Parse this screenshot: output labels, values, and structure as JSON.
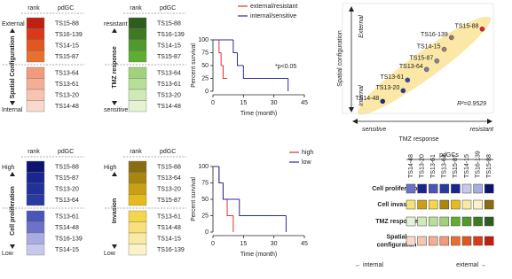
{
  "rank_panels": [
    {
      "rank_header": "rank",
      "id_header": "pdGC",
      "top_label": "External",
      "axis_label": "Spatial Configuration",
      "bottom_label": "Internal",
      "items": [
        "TS15-88",
        "TS16-139",
        "TS14-15",
        "TS15-87",
        "TS13-64",
        "TS13-61",
        "TS13-20",
        "TS14-48"
      ],
      "colors": [
        "#c0200f",
        "#d83a1a",
        "#e2561f",
        "#e8702e",
        "#f19a7c",
        "#f4ae95",
        "#f7c4b0",
        "#f9d9cc"
      ]
    },
    {
      "rank_header": "rank",
      "id_header": "pdGC",
      "top_label": "resistant",
      "axis_label": "TMZ response",
      "bottom_label": "sensitive",
      "items": [
        "TS15-88",
        "TS16-139",
        "TS14-15",
        "TS15-87",
        "TS13-64",
        "TS13-61",
        "TS13-20",
        "TS14-48"
      ],
      "colors": [
        "#2e5e1e",
        "#3d7a22",
        "#4e9a2a",
        "#5fae32",
        "#9fd27a",
        "#b7df98",
        "#cfeab6",
        "#e4f3d6"
      ]
    },
    {
      "rank_header": "rank",
      "id_header": "pdGC",
      "top_label": "High",
      "axis_label": "Cell proliferation",
      "bottom_label": "Low",
      "items": [
        "TS15-88",
        "TS15-87",
        "TS13-20",
        "TS13-64",
        "TS13-61",
        "TS14-48",
        "TS16-139",
        "TS14-15"
      ],
      "colors": [
        "#0d1470",
        "#1a2590",
        "#22309a",
        "#2a3aa0",
        "#4b55b8",
        "#6b72c8",
        "#a8ace0",
        "#c8c8ee"
      ]
    },
    {
      "rank_header": "rank",
      "id_header": "pdGC",
      "top_label": "High",
      "axis_label": "Invasion",
      "bottom_label": "Low",
      "items": [
        "TS15-88",
        "TS13-64",
        "TS13-20",
        "TS15-87",
        "TS13-61",
        "TS14-48",
        "TS14-15",
        "TS16-139"
      ],
      "colors": [
        "#8a6d10",
        "#a8860f",
        "#c9a013",
        "#e5bb1c",
        "#f5d54a",
        "#f8e07a",
        "#fae9a0",
        "#fcf2c8"
      ]
    }
  ],
  "chart_data": [
    {
      "type": "step",
      "x_label": "Time (month)",
      "y_label": "Percent survival",
      "annotation": "*p<0.05",
      "xlim": [
        0,
        45
      ],
      "xticks": [
        0,
        15,
        30,
        45
      ],
      "ylim": [
        0,
        100
      ],
      "yticks": [
        0,
        25,
        50,
        75,
        100
      ],
      "series": [
        {
          "name": "external/resistant",
          "color": "#e0302a",
          "x": [
            0,
            3,
            4,
            5,
            7
          ],
          "values": [
            100,
            75,
            50,
            25,
            25
          ]
        },
        {
          "name": "internal/sensitive",
          "color": "#2a2aa0",
          "x": [
            0,
            10,
            12,
            15,
            37
          ],
          "values": [
            100,
            75,
            50,
            25,
            0
          ]
        }
      ]
    },
    {
      "type": "step",
      "x_label": "Time (month)",
      "y_label": "Percent survival",
      "xlim": [
        0,
        45
      ],
      "xticks": [
        0,
        15,
        30,
        45
      ],
      "ylim": [
        0,
        100
      ],
      "yticks": [
        0,
        25,
        50,
        75,
        100
      ],
      "series": [
        {
          "name": "high",
          "color": "#e0302a",
          "x": [
            0,
            3,
            5,
            7,
            10
          ],
          "values": [
            100,
            75,
            50,
            25,
            0
          ]
        },
        {
          "name": "low",
          "color": "#2a2aa0",
          "x": [
            0,
            3,
            5,
            13,
            36
          ],
          "values": [
            100,
            75,
            50,
            25,
            0
          ]
        }
      ]
    },
    {
      "type": "scatter",
      "y_label": "Spatial configuration",
      "y_top": "External",
      "y_bottom": "Internal",
      "x_label": "TMZ response",
      "x_left": "sensitive",
      "x_right": "resistant",
      "annotation": "R²=0.9529",
      "xlim": [
        0,
        10
      ],
      "ylim": [
        0,
        10
      ],
      "labels": [
        "TS15-88",
        "TS16-139",
        "TS14-15",
        "TS15-87",
        "TS13-64",
        "TS13-61",
        "TS13-20",
        "TS14-48"
      ],
      "x": [
        9.3,
        7.2,
        6.7,
        6.2,
        5.5,
        4.2,
        3.9,
        2.5
      ],
      "values": [
        8.1,
        7.3,
        6.2,
        5.1,
        4.3,
        3.3,
        2.3,
        1.3
      ],
      "point_colors": [
        "#e02020",
        "#a07070",
        "#9a8080",
        "#8a8090",
        "#7a7a98",
        "#3a4aa8",
        "#2a3aa0",
        "#1a2a90"
      ]
    }
  ],
  "heatmap": {
    "title": "pdGCs",
    "columns": [
      "TS14-48",
      "TS13-20",
      "TS13-61",
      "TS13-64",
      "TS15-87",
      "TS14-15",
      "TS16-139",
      "TS15-88"
    ],
    "rows": [
      {
        "label_lines": [
          "Cell proliferation"
        ],
        "colors": [
          "#6b72c8",
          "#1a2590",
          "#4b55b8",
          "#2a3aa0",
          "#1a2590",
          "#c8c8ee",
          "#a8ace0",
          "#0d1470"
        ]
      },
      {
        "label_lines": [
          "Cell invasion"
        ],
        "colors": [
          "#f8e07a",
          "#c9a013",
          "#f5d54a",
          "#a8860f",
          "#e5bb1c",
          "#fae9a0",
          "#fcf2c8",
          "#8a6d10"
        ]
      },
      {
        "label_lines": [
          "TMZ response"
        ],
        "colors": [
          "#e4f3d6",
          "#cfeab6",
          "#b7df98",
          "#9fd27a",
          "#5fae32",
          "#4e9a2a",
          "#3d7a22",
          "#2e5e1e"
        ]
      },
      {
        "label_lines": [
          "Spatial",
          "configuration"
        ],
        "colors": [
          "#f9d9cc",
          "#f7c4b0",
          "#f4ae95",
          "#f19a7c",
          "#e8702e",
          "#e2561f",
          "#d83a1a",
          "#c0200f"
        ]
      }
    ],
    "left_note": "← internal",
    "right_note": "external →"
  }
}
